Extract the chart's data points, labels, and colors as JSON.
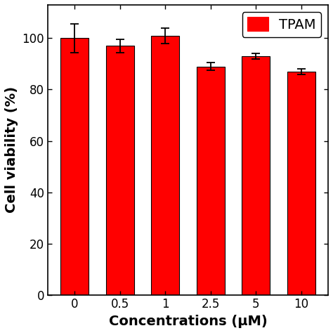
{
  "categories": [
    "0",
    "0.5",
    "1",
    "2.5",
    "5",
    "10"
  ],
  "values": [
    100.0,
    97.0,
    101.0,
    89.0,
    93.0,
    87.0
  ],
  "errors": [
    5.5,
    2.5,
    3.0,
    1.5,
    1.2,
    1.0
  ],
  "bar_color": "#FF0000",
  "bar_edgecolor": "#000000",
  "xlabel": "Concentrations (μM)",
  "ylabel": "Cell viability (%)",
  "ylim": [
    0,
    113
  ],
  "yticks": [
    0,
    20,
    40,
    60,
    80,
    100
  ],
  "legend_label": "TPAM",
  "legend_color": "#FF0000",
  "xlabel_fontsize": 14,
  "ylabel_fontsize": 14,
  "tick_fontsize": 12,
  "legend_fontsize": 14,
  "bar_width": 0.62,
  "figsize": [
    4.74,
    4.74
  ],
  "dpi": 100,
  "background_color": "#ffffff"
}
